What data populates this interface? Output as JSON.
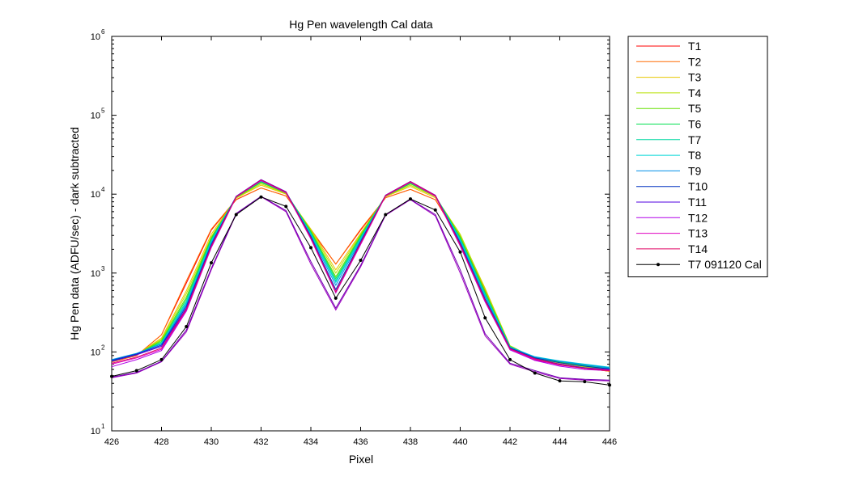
{
  "chart_data": {
    "type": "line",
    "title": "Hg Pen wavelength Cal data",
    "xlabel": "Pixel",
    "ylabel": "Hg Pen data (ADFU/sec) - dark subtracted",
    "xlim": [
      426,
      446
    ],
    "ylim": [
      10,
      1000000
    ],
    "yscale": "log",
    "grid": false,
    "legend_position": "outside-right",
    "xticks": [
      "426",
      "428",
      "430",
      "432",
      "434",
      "436",
      "438",
      "440",
      "442",
      "444",
      "446"
    ],
    "yticks": [
      {
        "base": "10",
        "exp": "1"
      },
      {
        "base": "10",
        "exp": "2"
      },
      {
        "base": "10",
        "exp": "3"
      },
      {
        "base": "10",
        "exp": "4"
      },
      {
        "base": "10",
        "exp": "5"
      },
      {
        "base": "10",
        "exp": "6"
      }
    ],
    "x": [
      426,
      427,
      428,
      429,
      430,
      431,
      432,
      433,
      434,
      435,
      436,
      437,
      438,
      439,
      440,
      441,
      442,
      443,
      444,
      445,
      446
    ],
    "series": [
      {
        "name": "T1",
        "color": "#ff0000",
        "values": [
          75,
          90,
          165,
          750,
          3500,
          8500,
          12000,
          9500,
          3500,
          1300,
          3500,
          9000,
          11500,
          8500,
          2600,
          600,
          115,
          78,
          70,
          62,
          57
        ]
      },
      {
        "name": "T2",
        "color": "#ff6a00",
        "values": [
          75,
          90,
          165,
          800,
          3600,
          8600,
          12000,
          9500,
          3600,
          1300,
          3600,
          9000,
          11500,
          8500,
          2800,
          620,
          118,
          80,
          70,
          62,
          57
        ]
      },
      {
        "name": "T3",
        "color": "#e8c800",
        "values": [
          76,
          92,
          150,
          600,
          3100,
          8900,
          13000,
          10000,
          3600,
          1100,
          3200,
          9300,
          12500,
          9000,
          3000,
          640,
          120,
          82,
          72,
          64,
          58
        ]
      },
      {
        "name": "T4",
        "color": "#b8e000",
        "values": [
          76,
          92,
          145,
          550,
          2900,
          9000,
          13500,
          10200,
          3500,
          1000,
          3100,
          9400,
          13000,
          9300,
          3100,
          620,
          120,
          83,
          73,
          65,
          59
        ]
      },
      {
        "name": "T5",
        "color": "#66e000",
        "values": [
          77,
          93,
          140,
          500,
          2800,
          9100,
          14000,
          10300,
          3400,
          900,
          3000,
          9500,
          13500,
          9400,
          2900,
          580,
          118,
          84,
          74,
          66,
          60
        ]
      },
      {
        "name": "T6",
        "color": "#00e050",
        "values": [
          77,
          93,
          135,
          470,
          2700,
          9200,
          14300,
          10400,
          3300,
          850,
          2900,
          9500,
          13800,
          9500,
          2800,
          560,
          117,
          85,
          75,
          67,
          61
        ]
      },
      {
        "name": "T7",
        "color": "#00d8a0",
        "values": [
          78,
          94,
          130,
          440,
          2600,
          9300,
          14600,
          10500,
          3200,
          800,
          2800,
          9600,
          14000,
          9500,
          2700,
          540,
          116,
          86,
          76,
          68,
          62
        ]
      },
      {
        "name": "T8",
        "color": "#00d8d8",
        "values": [
          79,
          95,
          128,
          420,
          2500,
          9300,
          14800,
          10600,
          3100,
          760,
          2700,
          9600,
          14200,
          9600,
          2600,
          520,
          115,
          87,
          77,
          70,
          64
        ]
      },
      {
        "name": "T9",
        "color": "#0090e8",
        "values": [
          80,
          96,
          126,
          400,
          2400,
          9400,
          15000,
          10600,
          3000,
          700,
          2600,
          9600,
          14300,
          9600,
          2500,
          500,
          114,
          86,
          76,
          69,
          63
        ]
      },
      {
        "name": "T10",
        "color": "#0030c0",
        "values": [
          78,
          94,
          122,
          380,
          2300,
          9400,
          15200,
          10700,
          2900,
          620,
          2500,
          9700,
          14400,
          9600,
          2400,
          470,
          112,
          84,
          73,
          66,
          61
        ]
      },
      {
        "name": "T11",
        "color": "#5000e0",
        "values": [
          76,
          92,
          118,
          360,
          2200,
          9400,
          15300,
          10700,
          2800,
          580,
          2400,
          9700,
          14500,
          9700,
          2300,
          450,
          110,
          82,
          70,
          63,
          60
        ]
      },
      {
        "name": "T12",
        "color": "#b000e8",
        "values": [
          65,
          80,
          104,
          330,
          2100,
          9200,
          14800,
          10400,
          2700,
          560,
          2300,
          9500,
          14100,
          9400,
          2200,
          430,
          106,
          78,
          66,
          60,
          58
        ]
      },
      {
        "name": "T13",
        "color": "#e000c0",
        "values": [
          70,
          84,
          108,
          340,
          2150,
          9300,
          15000,
          10500,
          2750,
          570,
          2350,
          9600,
          14300,
          9500,
          2250,
          440,
          108,
          80,
          68,
          62,
          59
        ]
      },
      {
        "name": "T14",
        "color": "#e00060",
        "values": [
          72,
          86,
          112,
          350,
          2200,
          9300,
          15100,
          10600,
          2800,
          580,
          2400,
          9600,
          14400,
          9600,
          2300,
          450,
          110,
          82,
          69,
          62,
          58
        ]
      },
      {
        "name": "T7 091120 Cal",
        "color": "#000000",
        "marker": "dot",
        "values": [
          49,
          58,
          80,
          210,
          1350,
          5500,
          9200,
          7000,
          2100,
          480,
          1450,
          5500,
          8700,
          6300,
          1850,
          270,
          80,
          54,
          43,
          42,
          38
        ]
      }
    ],
    "extra_lines": [
      {
        "color": "#a000c0",
        "values": [
          47,
          54,
          75,
          180,
          1100,
          5600,
          9300,
          6000,
          1300,
          340,
          1200,
          5400,
          8500,
          5300,
          1000,
          160,
          70,
          56,
          46,
          44,
          43
        ]
      },
      {
        "color": "#7000b0",
        "values": [
          48,
          55,
          76,
          190,
          1150,
          5700,
          9400,
          6200,
          1400,
          360,
          1250,
          5500,
          8600,
          5500,
          1100,
          170,
          72,
          58,
          47,
          45,
          44
        ]
      }
    ]
  }
}
